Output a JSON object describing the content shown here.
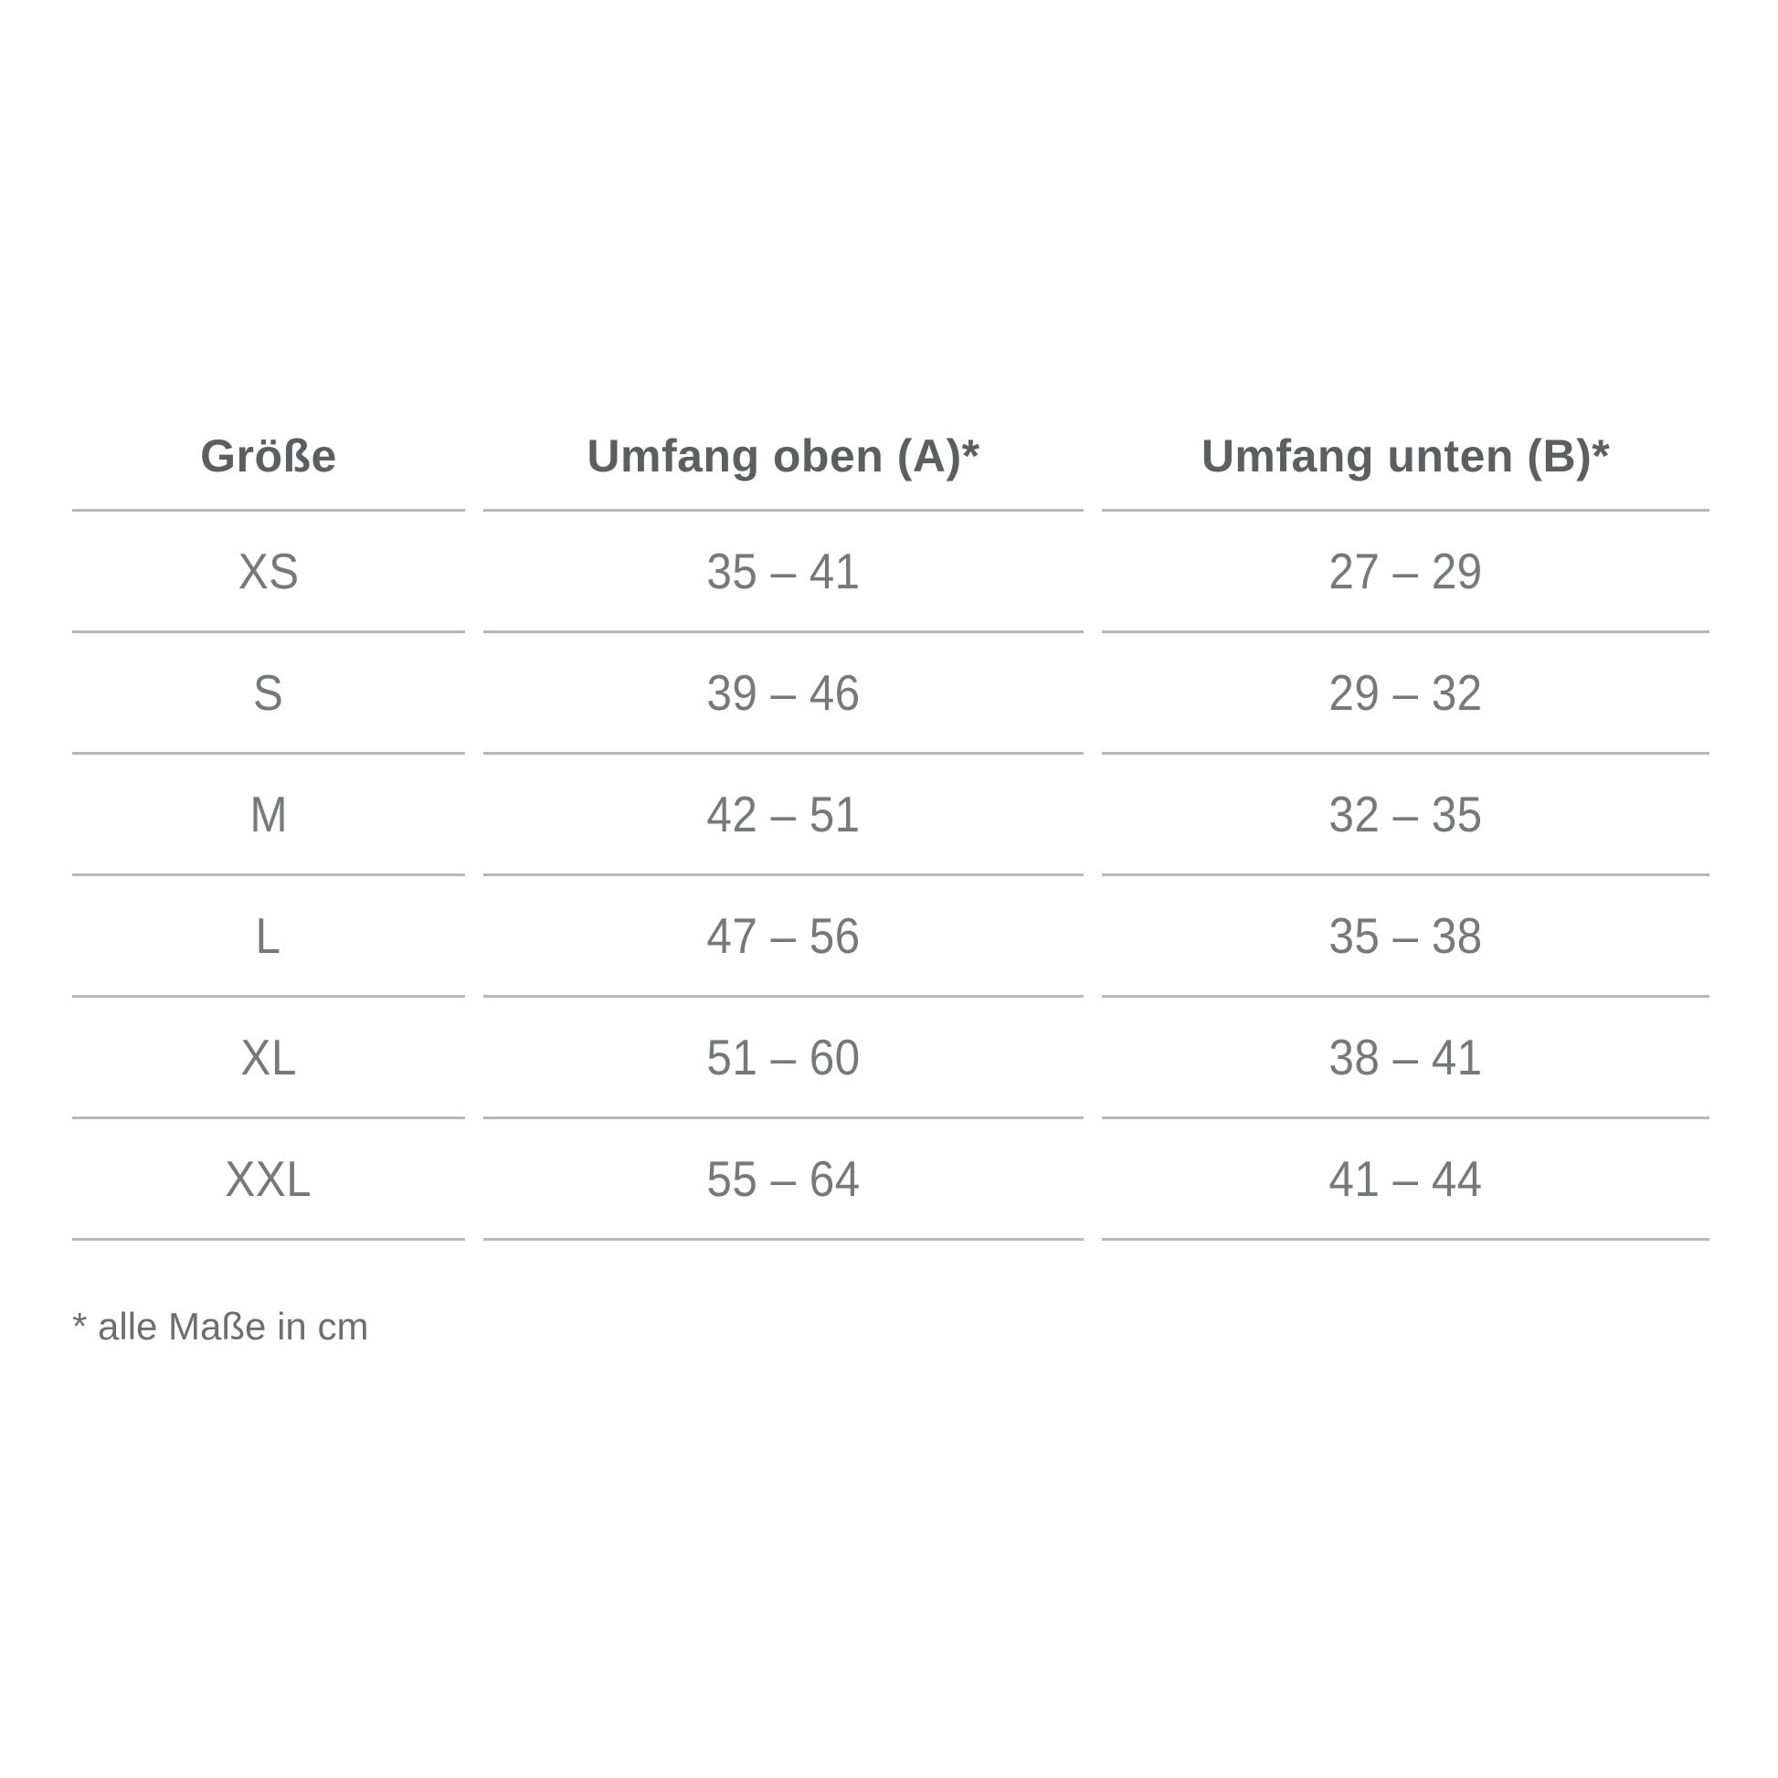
{
  "table": {
    "columns": [
      {
        "label": "Größe"
      },
      {
        "label": "Umfang oben (A)*"
      },
      {
        "label": "Umfang unten (B)*"
      }
    ],
    "rows": [
      {
        "size": "XS",
        "umfang_oben": "35 – 41",
        "umfang_unten": "27 – 29"
      },
      {
        "size": "S",
        "umfang_oben": "39 – 46",
        "umfang_unten": "29 – 32"
      },
      {
        "size": "M",
        "umfang_oben": "42 – 51",
        "umfang_unten": "32 – 35"
      },
      {
        "size": "L",
        "umfang_oben": "47 – 56",
        "umfang_unten": "35 – 38"
      },
      {
        "size": "XL",
        "umfang_oben": "51 – 60",
        "umfang_unten": "38 – 41"
      },
      {
        "size": "XXL",
        "umfang_oben": "55 – 64",
        "umfang_unten": "41 – 44"
      }
    ]
  },
  "footnote": "* alle Maße in cm",
  "colors": {
    "background": "#ffffff",
    "header_text": "#5d5e60",
    "data_text": "#77787b",
    "rule_line": "#b7b7b8",
    "footnote_text": "#6d6e70"
  }
}
